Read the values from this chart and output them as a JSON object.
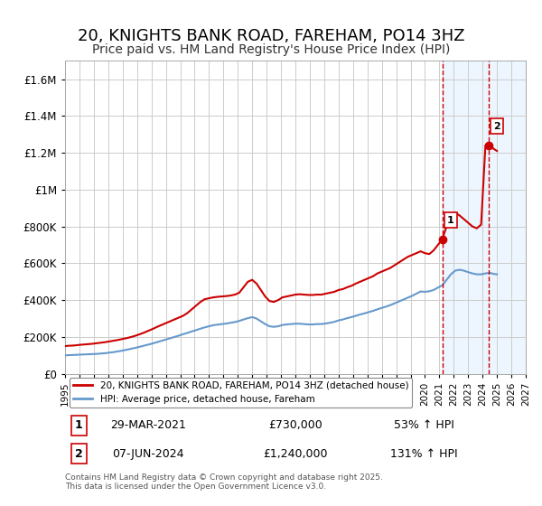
{
  "title": "20, KNIGHTS BANK ROAD, FAREHAM, PO14 3HZ",
  "subtitle": "Price paid vs. HM Land Registry's House Price Index (HPI)",
  "title_fontsize": 13,
  "subtitle_fontsize": 10,
  "bg_color": "#ffffff",
  "plot_bg_color": "#ffffff",
  "grid_color": "#cccccc",
  "red_line_color": "#cc0000",
  "blue_line_color": "#6699cc",
  "vline_color": "#cc0000",
  "shade_color": "#ddeeff",
  "xmin": 1995,
  "xmax": 2027,
  "ymin": 0,
  "ymax": 1700000,
  "yticks": [
    0,
    200000,
    400000,
    600000,
    800000,
    1000000,
    1200000,
    1400000,
    1600000
  ],
  "ytick_labels": [
    "£0",
    "£200K",
    "£400K",
    "£600K",
    "£800K",
    "£1M",
    "£1.2M",
    "£1.4M",
    "£1.6M"
  ],
  "xticks": [
    1995,
    1996,
    1997,
    1998,
    1999,
    2000,
    2001,
    2002,
    2003,
    2004,
    2005,
    2006,
    2007,
    2008,
    2009,
    2010,
    2011,
    2012,
    2013,
    2014,
    2015,
    2016,
    2017,
    2018,
    2019,
    2020,
    2021,
    2022,
    2023,
    2024,
    2025,
    2026,
    2027
  ],
  "sale1_x": 2021.24,
  "sale1_y": 730000,
  "sale2_x": 2024.44,
  "sale2_y": 1240000,
  "sale1_label": "1",
  "sale2_label": "2",
  "legend_line1": "20, KNIGHTS BANK ROAD, FAREHAM, PO14 3HZ (detached house)",
  "legend_line2": "HPI: Average price, detached house, Fareham",
  "table_row1": [
    "1",
    "29-MAR-2021",
    "£730,000",
    "53% ↑ HPI"
  ],
  "table_row2": [
    "2",
    "07-JUN-2024",
    "£1,240,000",
    "131% ↑ HPI"
  ],
  "footnote": "Contains HM Land Registry data © Crown copyright and database right 2025.\nThis data is licensed under the Open Government Licence v3.0.",
  "red_x": [
    1995.0,
    1995.2,
    1995.5,
    1995.8,
    1996.0,
    1996.3,
    1996.6,
    1996.9,
    1997.2,
    1997.5,
    1997.8,
    1998.1,
    1998.4,
    1998.7,
    1999.0,
    1999.3,
    1999.6,
    1999.9,
    2000.2,
    2000.5,
    2000.8,
    2001.1,
    2001.4,
    2001.7,
    2002.0,
    2002.3,
    2002.6,
    2002.9,
    2003.2,
    2003.5,
    2003.8,
    2004.1,
    2004.4,
    2004.7,
    2005.0,
    2005.3,
    2005.6,
    2005.9,
    2006.2,
    2006.5,
    2006.8,
    2007.1,
    2007.4,
    2007.7,
    2008.0,
    2008.3,
    2008.6,
    2008.9,
    2009.2,
    2009.5,
    2009.8,
    2010.1,
    2010.4,
    2010.7,
    2011.0,
    2011.3,
    2011.6,
    2011.9,
    2012.2,
    2012.5,
    2012.8,
    2013.1,
    2013.4,
    2013.7,
    2014.0,
    2014.3,
    2014.6,
    2014.9,
    2015.2,
    2015.5,
    2015.8,
    2016.1,
    2016.4,
    2016.7,
    2017.0,
    2017.3,
    2017.6,
    2017.9,
    2018.2,
    2018.5,
    2018.8,
    2019.1,
    2019.4,
    2019.7,
    2020.0,
    2020.3,
    2020.6,
    2020.9,
    2021.2,
    2021.5,
    2021.8,
    2022.1,
    2022.4,
    2022.7,
    2023.0,
    2023.3,
    2023.6,
    2023.9,
    2024.2,
    2024.5,
    2024.8,
    2025.0
  ],
  "red_y": [
    150000,
    152000,
    153000,
    155000,
    157000,
    159000,
    161000,
    163000,
    166000,
    169000,
    172000,
    176000,
    180000,
    184000,
    189000,
    194000,
    200000,
    207000,
    215000,
    224000,
    234000,
    244000,
    255000,
    265000,
    275000,
    285000,
    295000,
    305000,
    315000,
    330000,
    350000,
    370000,
    390000,
    405000,
    410000,
    415000,
    418000,
    420000,
    422000,
    425000,
    430000,
    440000,
    470000,
    500000,
    510000,
    490000,
    455000,
    420000,
    395000,
    390000,
    400000,
    415000,
    420000,
    425000,
    430000,
    432000,
    430000,
    428000,
    428000,
    430000,
    430000,
    435000,
    440000,
    445000,
    455000,
    460000,
    470000,
    478000,
    490000,
    500000,
    510000,
    520000,
    530000,
    545000,
    555000,
    565000,
    575000,
    590000,
    605000,
    620000,
    635000,
    645000,
    655000,
    665000,
    655000,
    650000,
    670000,
    700000,
    730000,
    800000,
    850000,
    875000,
    860000,
    840000,
    820000,
    800000,
    790000,
    810000,
    1240000,
    1240000,
    1220000,
    1210000
  ],
  "blue_x": [
    1995.0,
    1995.2,
    1995.5,
    1995.8,
    1996.0,
    1996.3,
    1996.6,
    1996.9,
    1997.2,
    1997.5,
    1997.8,
    1998.1,
    1998.4,
    1998.7,
    1999.0,
    1999.3,
    1999.6,
    1999.9,
    2000.2,
    2000.5,
    2000.8,
    2001.1,
    2001.4,
    2001.7,
    2002.0,
    2002.3,
    2002.6,
    2002.9,
    2003.2,
    2003.5,
    2003.8,
    2004.1,
    2004.4,
    2004.7,
    2005.0,
    2005.3,
    2005.6,
    2005.9,
    2006.2,
    2006.5,
    2006.8,
    2007.1,
    2007.4,
    2007.7,
    2008.0,
    2008.3,
    2008.6,
    2008.9,
    2009.2,
    2009.5,
    2009.8,
    2010.1,
    2010.4,
    2010.7,
    2011.0,
    2011.3,
    2011.6,
    2011.9,
    2012.2,
    2012.5,
    2012.8,
    2013.1,
    2013.4,
    2013.7,
    2014.0,
    2014.3,
    2014.6,
    2014.9,
    2015.2,
    2015.5,
    2015.8,
    2016.1,
    2016.4,
    2016.7,
    2017.0,
    2017.3,
    2017.6,
    2017.9,
    2018.2,
    2018.5,
    2018.8,
    2019.1,
    2019.4,
    2019.7,
    2020.0,
    2020.3,
    2020.6,
    2020.9,
    2021.2,
    2021.5,
    2021.8,
    2022.1,
    2022.4,
    2022.7,
    2023.0,
    2023.3,
    2023.6,
    2023.9,
    2024.2,
    2024.5,
    2024.8,
    2025.0
  ],
  "blue_y": [
    100000,
    101000,
    102000,
    103000,
    104000,
    105000,
    106000,
    107000,
    108000,
    110000,
    112000,
    115000,
    118000,
    122000,
    126000,
    131000,
    136000,
    141000,
    147000,
    153000,
    159000,
    165000,
    172000,
    179000,
    186000,
    193000,
    200000,
    207000,
    215000,
    222000,
    230000,
    237000,
    245000,
    252000,
    258000,
    264000,
    267000,
    270000,
    273000,
    277000,
    281000,
    287000,
    295000,
    302000,
    308000,
    300000,
    285000,
    270000,
    258000,
    255000,
    258000,
    265000,
    268000,
    270000,
    272000,
    272000,
    270000,
    268000,
    268000,
    270000,
    270000,
    273000,
    277000,
    282000,
    290000,
    295000,
    302000,
    308000,
    315000,
    322000,
    328000,
    335000,
    342000,
    350000,
    358000,
    365000,
    373000,
    383000,
    393000,
    403000,
    413000,
    423000,
    435000,
    447000,
    445000,
    448000,
    455000,
    468000,
    480000,
    510000,
    540000,
    560000,
    565000,
    560000,
    552000,
    545000,
    540000,
    540000,
    545000,
    548000,
    542000,
    540000
  ]
}
